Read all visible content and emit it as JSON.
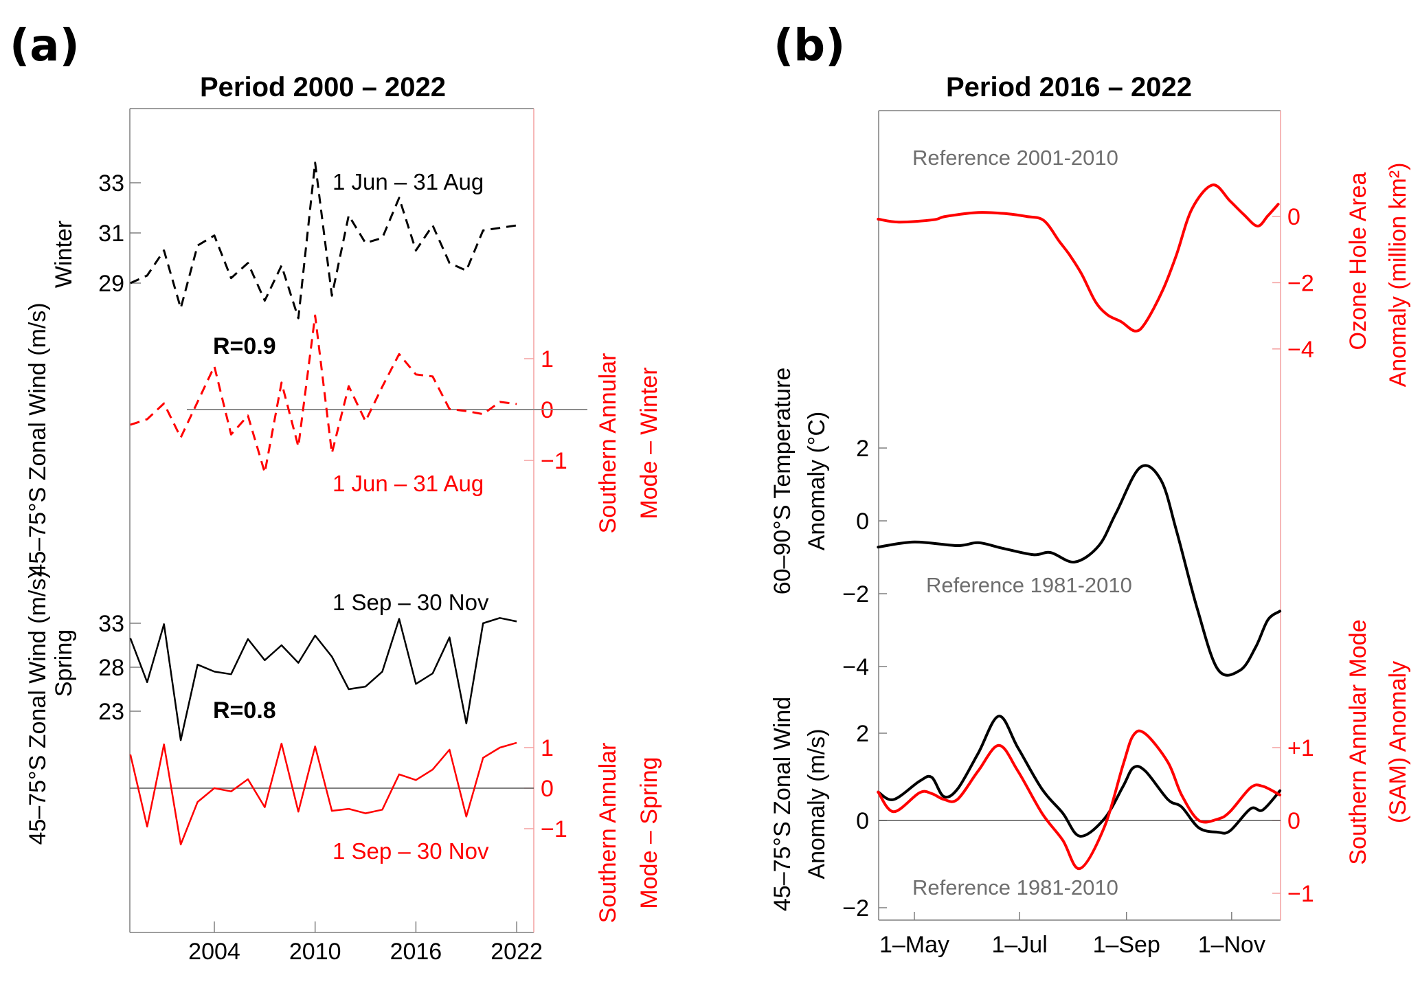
{
  "figure": {
    "panel_a_label": "(a)",
    "panel_b_label": "(b)"
  },
  "chart_data": [
    {
      "id": "panel-a-winter",
      "type": "line",
      "title": "Period 2000 – 2022",
      "xlabel": "",
      "x_ticks": [
        "2004",
        "2010",
        "2016",
        "2022"
      ],
      "x_tick_values": [
        2004,
        2010,
        2016,
        2022
      ],
      "xlim": [
        1999,
        2023
      ],
      "ylabel_left": "45–75°S Zonal Wind (m/s)",
      "ylabel_left_sub": "Winter",
      "ylabel_right": "Southern Annular Mode – Winter",
      "y_left_ticks": [
        29,
        31,
        33
      ],
      "y_right_ticks": [
        -1,
        0,
        1
      ],
      "y_right_tick_labels": [
        "−1",
        "0",
        "1"
      ],
      "annotation_top": "1 Jun – 31 Aug",
      "annotation_bottom": "1 Jun – 31 Aug",
      "correlation": "R=0.9",
      "x": [
        1999,
        2000,
        2001,
        2002,
        2003,
        2004,
        2005,
        2006,
        2007,
        2008,
        2009,
        2010,
        2011,
        2012,
        2013,
        2014,
        2015,
        2016,
        2017,
        2018,
        2019,
        2020,
        2021,
        2022
      ],
      "series": [
        {
          "name": "Zonal wind winter",
          "axis": "left",
          "color": "#000000",
          "style": "dashed",
          "values": [
            29.0,
            29.3,
            30.3,
            28.0,
            30.5,
            30.9,
            29.2,
            29.8,
            28.3,
            29.7,
            27.6,
            33.8,
            28.5,
            31.7,
            30.6,
            30.8,
            32.4,
            30.3,
            31.3,
            29.8,
            29.5,
            31.1,
            31.2,
            31.3
          ]
        },
        {
          "name": "SAM winter",
          "axis": "right",
          "color": "#ff0000",
          "style": "dashed",
          "values": [
            -0.3,
            -0.19,
            0.12,
            -0.55,
            0.15,
            0.85,
            -0.49,
            -0.12,
            -1.24,
            0.53,
            -0.73,
            1.85,
            -0.86,
            0.46,
            -0.23,
            0.45,
            1.09,
            0.69,
            0.65,
            0.01,
            -0.03,
            -0.09,
            0.15,
            0.11
          ]
        }
      ]
    },
    {
      "id": "panel-a-spring",
      "type": "line",
      "xlabel": "",
      "ylabel_left": "45–75°S Zonal Wind (m/s)",
      "ylabel_left_sub": "Spring",
      "ylabel_right": "Southern Annular Mode – Spring",
      "y_left_ticks": [
        23,
        28,
        33
      ],
      "y_right_ticks": [
        -1,
        0,
        1
      ],
      "y_right_tick_labels": [
        "−1",
        "0",
        "1"
      ],
      "annotation_top": "1 Sep – 30 Nov",
      "annotation_bottom": "1 Sep – 30 Nov",
      "correlation": "R=0.8",
      "x": [
        1999,
        2000,
        2001,
        2002,
        2003,
        2004,
        2005,
        2006,
        2007,
        2008,
        2009,
        2010,
        2011,
        2012,
        2013,
        2014,
        2015,
        2016,
        2017,
        2018,
        2019,
        2020,
        2021,
        2022
      ],
      "series": [
        {
          "name": "Zonal wind spring",
          "axis": "left",
          "color": "#000000",
          "style": "solid",
          "values": [
            31.3,
            26.3,
            32.9,
            19.7,
            28.3,
            27.5,
            27.2,
            31.2,
            28.8,
            30.5,
            28.5,
            31.6,
            29.2,
            25.5,
            25.8,
            27.5,
            33.5,
            26.1,
            27.3,
            31.4,
            21.6,
            33.0,
            33.6,
            33.2
          ]
        },
        {
          "name": "SAM spring",
          "axis": "right",
          "color": "#ff0000",
          "style": "solid",
          "values": [
            0.83,
            -0.95,
            1.08,
            -1.39,
            -0.34,
            0.0,
            -0.08,
            0.22,
            -0.47,
            1.1,
            -0.58,
            1.03,
            -0.56,
            -0.51,
            -0.62,
            -0.53,
            0.34,
            0.2,
            0.46,
            0.95,
            -0.7,
            0.75,
            1.0,
            1.12
          ]
        }
      ]
    },
    {
      "id": "panel-b-ozone",
      "type": "line",
      "title": "Period 2016 – 2022",
      "x_unit": "day of year",
      "xlim": [
        100,
        335
      ],
      "x_ticks": [
        "1–May",
        "1–Jul",
        "1–Sep",
        "1–Nov"
      ],
      "x_tick_values": [
        121,
        182,
        244,
        305
      ],
      "ylabel_right": "Ozone Hole Area",
      "ylabel_right_2": "Anomaly (million km²)",
      "y_right_ticks": [
        -4,
        -2,
        0
      ],
      "y_right_tick_labels": [
        "−4",
        "−2",
        "0"
      ],
      "annotation": "Reference 2001-2010",
      "series": [
        {
          "name": "Ozone hole area anomaly (smoothed)",
          "axis": "right",
          "color": "#ff0000",
          "x": [
            100,
            112,
            132,
            139,
            158,
            175,
            186,
            196,
            205,
            211,
            218,
            226,
            233,
            241,
            249,
            255,
            265,
            273,
            282,
            294,
            304,
            312,
            320,
            326,
            332
          ],
          "values": [
            -0.08,
            -0.17,
            -0.1,
            0.0,
            0.12,
            0.08,
            0.0,
            -0.12,
            -0.75,
            -1.16,
            -1.74,
            -2.57,
            -2.97,
            -3.18,
            -3.46,
            -3.21,
            -2.23,
            -1.16,
            0.23,
            0.95,
            0.47,
            0.06,
            -0.29,
            0.02,
            0.37
          ]
        }
      ]
    },
    {
      "id": "panel-b-temperature",
      "type": "line",
      "ylabel_left": "60–90°S Temperature",
      "ylabel_left_2": "Anomaly (°C)",
      "y_left_ticks": [
        -4,
        -2,
        0,
        2
      ],
      "y_left_tick_labels": [
        "−4",
        "−2",
        "0",
        "2"
      ],
      "annotation": "Reference 1981-2010",
      "series": [
        {
          "name": "Temperature anomaly (smoothed)",
          "axis": "left",
          "color": "#000000",
          "x": [
            100,
            121,
            146,
            158,
            172,
            190,
            200,
            214,
            228,
            238,
            252,
            264,
            273,
            285,
            297,
            310,
            319,
            326,
            333
          ],
          "values": [
            -0.72,
            -0.58,
            -0.68,
            -0.6,
            -0.75,
            -0.93,
            -0.87,
            -1.13,
            -0.68,
            0.22,
            1.47,
            1.12,
            -0.27,
            -2.4,
            -4.08,
            -4.1,
            -3.46,
            -2.72,
            -2.48
          ]
        }
      ]
    },
    {
      "id": "panel-b-wind-sam",
      "type": "line",
      "ylabel_left": "45–75°S Zonal Wind",
      "ylabel_left_2": "Anomaly (m/s)",
      "y_left_ticks": [
        -2,
        0,
        2
      ],
      "y_left_tick_labels": [
        "−2",
        "0",
        "2"
      ],
      "ylabel_right": "Southern Annular Mode",
      "ylabel_right_2": "(SAM) Anomaly",
      "y_right_ticks": [
        -1,
        0,
        1
      ],
      "y_right_tick_labels": [
        "−1",
        "0",
        "+1"
      ],
      "annotation": "Reference 1981-2010",
      "series": [
        {
          "name": "Zonal wind anomaly (smoothed)",
          "axis": "left",
          "color": "#000000",
          "x": [
            100,
            109,
            124,
            131,
            138,
            146,
            158,
            170,
            181,
            195,
            207,
            217,
            231,
            242,
            248,
            255,
            268,
            276,
            286,
            297,
            304,
            316,
            323,
            333
          ],
          "values": [
            0.65,
            0.48,
            0.9,
            0.99,
            0.55,
            0.72,
            1.54,
            2.39,
            1.67,
            0.72,
            0.17,
            -0.36,
            0.03,
            0.78,
            1.21,
            1.13,
            0.48,
            0.31,
            -0.17,
            -0.27,
            -0.24,
            0.27,
            0.24,
            0.68
          ]
        },
        {
          "name": "SAM anomaly (smoothed)",
          "axis": "right",
          "color": "#ff0000",
          "x": [
            100,
            109,
            124,
            131,
            138,
            146,
            158,
            170,
            181,
            195,
            207,
            217,
            231,
            242,
            248,
            255,
            268,
            276,
            286,
            297,
            304,
            316,
            323,
            333
          ],
          "values": [
            0.39,
            0.12,
            0.38,
            0.37,
            0.29,
            0.29,
            0.68,
            1.03,
            0.68,
            0.1,
            -0.27,
            -0.66,
            -0.1,
            0.76,
            1.17,
            1.19,
            0.8,
            0.35,
            0.0,
            0.02,
            0.12,
            0.45,
            0.47,
            0.35
          ]
        }
      ]
    }
  ]
}
